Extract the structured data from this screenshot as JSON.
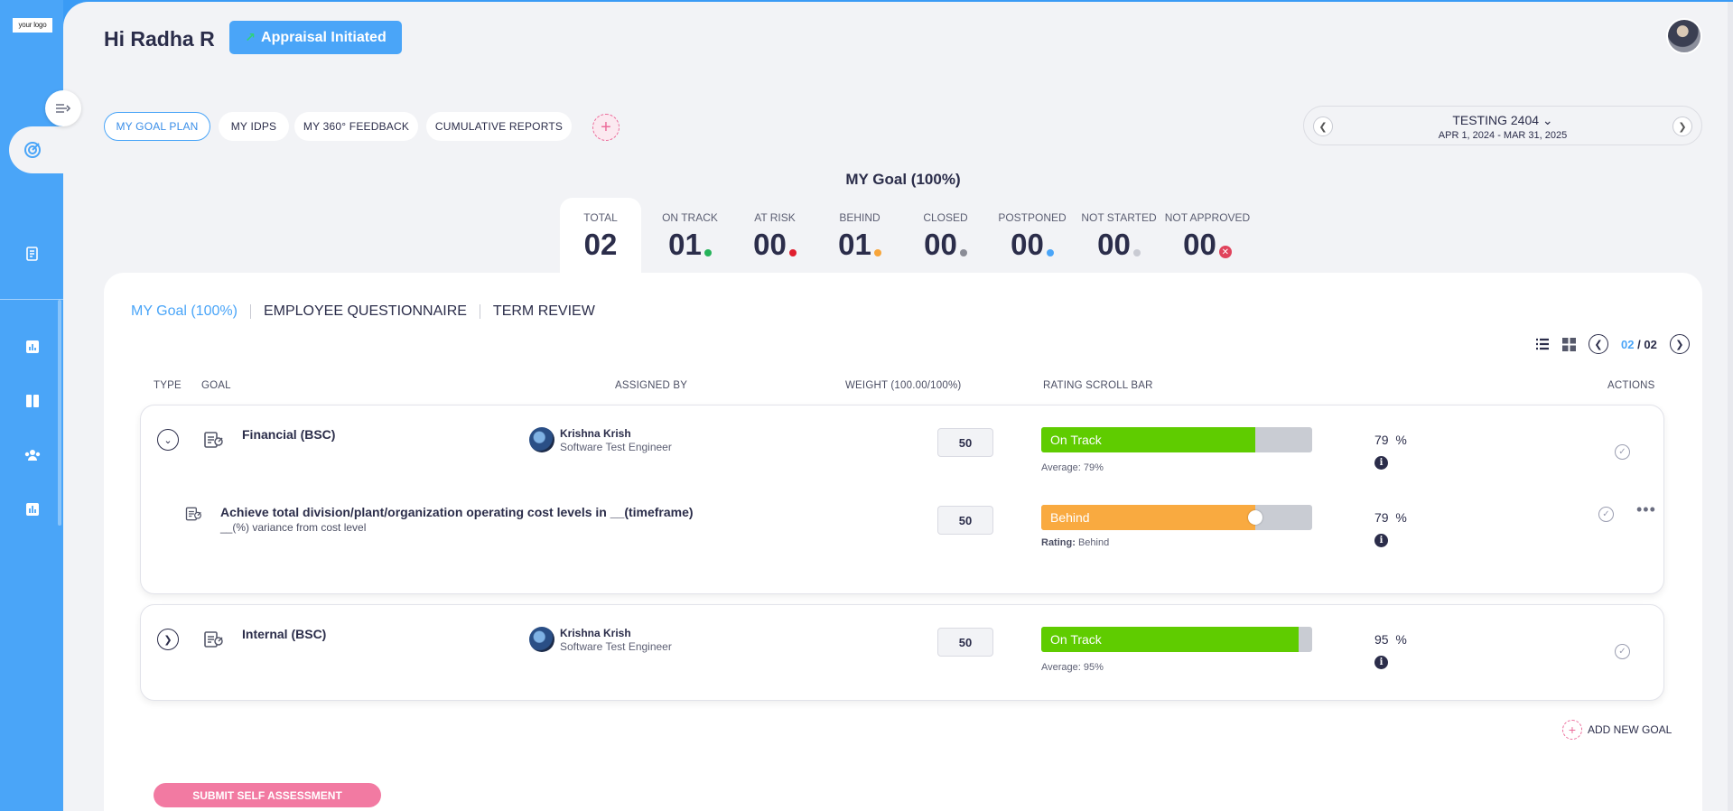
{
  "logo_text": "your logo",
  "header": {
    "greeting": "Hi Radha R",
    "status_badge": "Appraisal Initiated"
  },
  "nav_tabs": [
    {
      "label": "MY GOAL PLAN",
      "active": true
    },
    {
      "label": "MY IDPS",
      "active": false
    },
    {
      "label": "MY 360° FEEDBACK",
      "active": false
    },
    {
      "label": "CUMULATIVE REPORTS",
      "active": false
    }
  ],
  "period": {
    "name": "TESTING 2404",
    "range": "APR 1, 2024 - MAR 31, 2025"
  },
  "goal_summary": {
    "title": "MY Goal (100%)",
    "stats": [
      {
        "label": "TOTAL",
        "value": "02",
        "color": ""
      },
      {
        "label": "ON TRACK",
        "value": "01",
        "color": "#26b35a"
      },
      {
        "label": "AT RISK",
        "value": "00",
        "color": "#e01e2e"
      },
      {
        "label": "BEHIND",
        "value": "01",
        "color": "#f7a53a"
      },
      {
        "label": "CLOSED",
        "value": "00",
        "color": "#8a8c96"
      },
      {
        "label": "POSTPONED",
        "value": "00",
        "color": "#4aa5f8"
      },
      {
        "label": "NOT STARTED",
        "value": "00",
        "color": "#c9cbd3"
      },
      {
        "label": "NOT APPROVED",
        "value": "00",
        "color": "#e0435c"
      }
    ]
  },
  "sub_tabs": [
    {
      "label": "MY Goal (100%)",
      "active": true
    },
    {
      "label": "EMPLOYEE QUESTIONNAIRE",
      "active": false
    },
    {
      "label": "TERM REVIEW",
      "active": false
    }
  ],
  "pager": {
    "current": "02",
    "separator": "/",
    "total": "02"
  },
  "table_headers": {
    "type": "TYPE",
    "goal": "GOAL",
    "assigned_by": "ASSIGNED BY",
    "weight": "WEIGHT (100.00/100%)",
    "rating": "RATING SCROLL BAR",
    "actions": "ACTIONS"
  },
  "goals": [
    {
      "name": "Financial (BSC)",
      "assignee_name": "Krishna Krish",
      "assignee_role": "Software Test Engineer",
      "weight": "50",
      "status_label": "On Track",
      "progress_percent": 79,
      "status_color": "#5fcc00",
      "note": "Average: 79%",
      "percent_text": "79",
      "percent_sign": "%",
      "expanded": true,
      "sub_goal": {
        "title": "Achieve total division/plant/organization operating cost levels in __(timeframe)",
        "description": "__(%) variance from cost level",
        "weight": "50",
        "status_label": "Behind",
        "progress_percent": 79,
        "status_color": "#f9aa40",
        "note_label": "Rating:",
        "note_value": "Behind",
        "percent_text": "79",
        "percent_sign": "%"
      }
    },
    {
      "name": "Internal (BSC)",
      "assignee_name": "Krishna Krish",
      "assignee_role": "Software Test Engineer",
      "weight": "50",
      "status_label": "On Track",
      "progress_percent": 95,
      "status_color": "#5fcc00",
      "note": "Average: 95%",
      "percent_text": "95",
      "percent_sign": "%",
      "expanded": false
    }
  ],
  "add_goal_label": "ADD NEW GOAL",
  "submit_label": "SUBMIT SELF ASSESSMENT",
  "icons": {
    "collapse": "collapse-sidebar-icon",
    "target": "target-icon",
    "document": "document-edit-icon",
    "chart": "bar-chart-icon",
    "book": "book-icon",
    "team": "team-icon",
    "report": "report-icon"
  }
}
